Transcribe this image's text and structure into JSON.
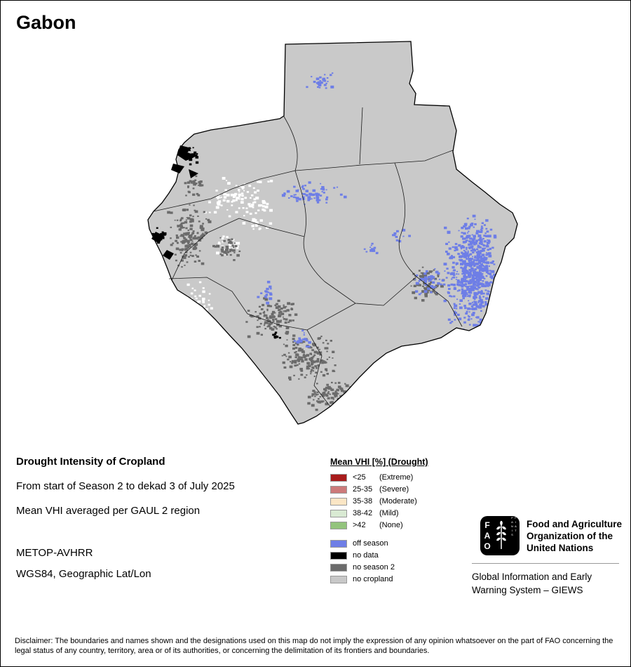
{
  "page": {
    "title": "Gabon"
  },
  "info": {
    "heading": "Drought Intensity of Cropland",
    "line1": "From start of Season 2 to dekad 3 of July 2025",
    "line2": "Mean VHI averaged per GAUL 2 region",
    "line3": "METOP-AVHRR",
    "line4": "WGS84, Geographic Lat/Lon"
  },
  "legend": {
    "title": "Mean VHI [%] (Drought)",
    "vhi_classes": [
      {
        "color": "#a81c1c",
        "value": "<25",
        "qualifier": "(Extreme)"
      },
      {
        "color": "#cc7a7a",
        "value": "25-35",
        "qualifier": "(Severe)"
      },
      {
        "color": "#fbe6c5",
        "value": "35-38",
        "qualifier": "(Moderate)"
      },
      {
        "color": "#d9ead3",
        "value": "38-42",
        "qualifier": "(Mild)"
      },
      {
        "color": "#93c47d",
        "value": ">42",
        "qualifier": "(None)"
      }
    ],
    "other_classes": [
      {
        "color": "#6e7ee6",
        "label": "off season"
      },
      {
        "color": "#000000",
        "label": "no data"
      },
      {
        "color": "#6b6b6b",
        "label": "no season 2"
      },
      {
        "color": "#c8c8c8",
        "label": "no cropland"
      }
    ]
  },
  "map": {
    "country_fill": "#c9c9c9",
    "colors": {
      "off_season": "#6e7ee6",
      "no_data": "#000000",
      "no_season2": "#6b6b6b",
      "no_cropland": "#c9c9c9",
      "white_patches": "#ffffff"
    }
  },
  "branding": {
    "logo_text": "FAO",
    "logo_motto": "FIAT PANIS",
    "org_line1": "Food and Agriculture",
    "org_line2": "Organization of the",
    "org_line3": "United Nations",
    "giews_line1": "Global Information and Early",
    "giews_line2": "Warning System – GIEWS"
  },
  "disclaimer": "Disclaimer: The boundaries and names shown and the designations used on this map do not imply the expression of any opinion whatsoever on the part of FAO concerning the legal status of any country, territory, area or of its authorities, or concerning the delimitation of its frontiers and boundaries."
}
